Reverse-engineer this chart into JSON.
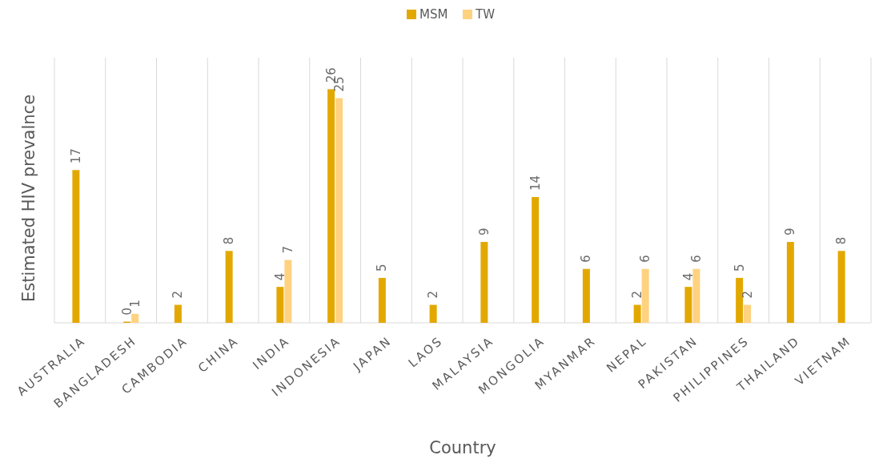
{
  "chart_data": {
    "type": "bar",
    "xlabel": "Country",
    "ylabel": "Estimated HIV prevalnce",
    "categories": [
      "AUSTRALIA",
      "BANGLADESH",
      "CAMBODIA",
      "CHINA",
      "INDIA",
      "INDONESIA",
      "JAPAN",
      "LAOS",
      "MALAYSIA",
      "MONGOLIA",
      "MYANMAR",
      "NEPAL",
      "PAKISTAN",
      "PHILIPPINES",
      "THAILAND",
      "VIETNAM"
    ],
    "series": [
      {
        "name": "MSM",
        "color": "#e3a800",
        "values": [
          17,
          0,
          2,
          8,
          4,
          26,
          5,
          2,
          9,
          14,
          6,
          2,
          4,
          5,
          9,
          8
        ]
      },
      {
        "name": "TW",
        "color": "#ffd280",
        "values": [
          null,
          1,
          null,
          null,
          7,
          25,
          null,
          null,
          null,
          null,
          null,
          6,
          6,
          2,
          null,
          null
        ]
      }
    ],
    "data_labels": true,
    "grid": "x",
    "legend": "top"
  }
}
